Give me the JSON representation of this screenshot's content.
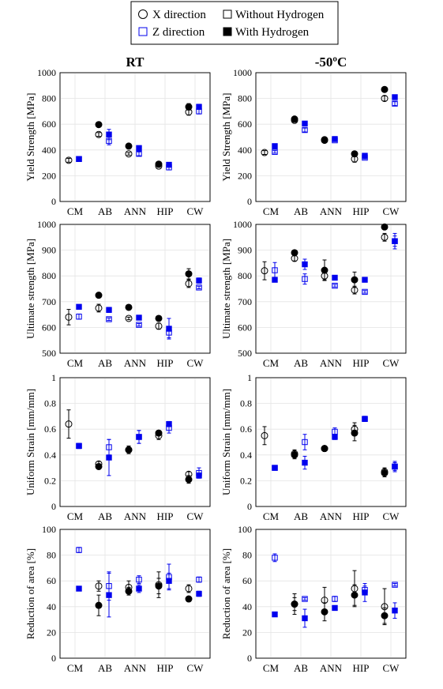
{
  "legend": {
    "x_direction": "X direction",
    "z_direction": "Z direction",
    "without_h": "Without Hydrogen",
    "with_h": "With Hydrogen"
  },
  "colors": {
    "x": "#000000",
    "z": "#0000ee"
  },
  "chart_data": [
    {
      "type": "scatter",
      "title": "RT",
      "ylabel": "Yield Strength [MPa]",
      "ylim": [
        0,
        1000
      ],
      "yticks": [
        "0",
        "200",
        "400",
        "600",
        "800",
        "1000"
      ],
      "categories": [
        "CM",
        "AB",
        "ANN",
        "HIP",
        "CW"
      ],
      "grid": true,
      "series": [
        {
          "dir": "X",
          "h": false,
          "values": [
            320,
            520,
            370,
            275,
            695
          ],
          "err": [
            15,
            15,
            10,
            10,
            25
          ]
        },
        {
          "dir": "X",
          "h": true,
          "values": [
            null,
            597,
            430,
            290,
            735
          ],
          "err": [
            null,
            8,
            8,
            8,
            25
          ]
        },
        {
          "dir": "Z",
          "h": false,
          "values": [
            330,
            470,
            370,
            265,
            700
          ],
          "err": [
            10,
            30,
            15,
            20,
            20
          ]
        },
        {
          "dir": "Z",
          "h": true,
          "values": [
            330,
            520,
            415,
            285,
            735
          ],
          "err": [
            10,
            40,
            8,
            8,
            20
          ]
        }
      ]
    },
    {
      "type": "scatter",
      "title": "-50ºC",
      "ylabel": "Yield Strength [MPa]",
      "ylim": [
        0,
        1000
      ],
      "yticks": [
        "0",
        "200",
        "400",
        "600",
        "800",
        "1000"
      ],
      "categories": [
        "CM",
        "AB",
        "ANN",
        "HIP",
        "CW"
      ],
      "grid": true,
      "series": [
        {
          "dir": "X",
          "h": false,
          "values": [
            380,
            630,
            480,
            330,
            800
          ],
          "err": [
            15,
            15,
            10,
            25,
            20
          ]
        },
        {
          "dir": "X",
          "h": true,
          "values": [
            null,
            640,
            475,
            370,
            870
          ],
          "err": [
            null,
            15,
            10,
            8,
            8
          ]
        },
        {
          "dir": "Z",
          "h": false,
          "values": [
            385,
            555,
            475,
            340,
            760
          ],
          "err": [
            10,
            15,
            10,
            10,
            15
          ]
        },
        {
          "dir": "Z",
          "h": true,
          "values": [
            430,
            605,
            485,
            355,
            810
          ],
          "err": [
            10,
            8,
            8,
            8,
            8
          ]
        }
      ]
    },
    {
      "type": "scatter",
      "ylabel": "Ultimate strength [MPa]",
      "ylim": [
        500,
        1000
      ],
      "yticks": [
        "500",
        "600",
        "700",
        "800",
        "900",
        "1000"
      ],
      "categories": [
        "CM",
        "AB",
        "ANN",
        "HIP",
        "CW"
      ],
      "grid": true,
      "series": [
        {
          "dir": "X",
          "h": false,
          "values": [
            640,
            675,
            635,
            605,
            770
          ],
          "err": [
            30,
            15,
            5,
            12,
            15
          ]
        },
        {
          "dir": "X",
          "h": true,
          "values": [
            null,
            725,
            678,
            635,
            808
          ],
          "err": [
            null,
            5,
            5,
            5,
            20
          ]
        },
        {
          "dir": "Z",
          "h": false,
          "values": [
            642,
            632,
            610,
            580,
            755
          ],
          "err": [
            10,
            5,
            5,
            20,
            5
          ]
        },
        {
          "dir": "Z",
          "h": true,
          "values": [
            680,
            668,
            638,
            595,
            782
          ],
          "err": [
            5,
            10,
            5,
            40,
            10
          ]
        }
      ]
    },
    {
      "type": "scatter",
      "ylabel": "Ultimate strength [MPa]",
      "ylim": [
        500,
        1000
      ],
      "yticks": [
        "500",
        "600",
        "700",
        "800",
        "900",
        "1000"
      ],
      "categories": [
        "CM",
        "AB",
        "ANN",
        "HIP",
        "CW"
      ],
      "grid": true,
      "series": [
        {
          "dir": "X",
          "h": false,
          "values": [
            820,
            868,
            800,
            745,
            950
          ],
          "err": [
            35,
            10,
            15,
            15,
            15
          ]
        },
        {
          "dir": "X",
          "h": true,
          "values": [
            null,
            890,
            822,
            785,
            990
          ],
          "err": [
            null,
            5,
            40,
            30,
            5
          ]
        },
        {
          "dir": "Z",
          "h": false,
          "values": [
            822,
            788,
            762,
            738,
            935
          ],
          "err": [
            30,
            20,
            5,
            5,
            20
          ]
        },
        {
          "dir": "Z",
          "h": true,
          "values": [
            785,
            845,
            793,
            785,
            935
          ],
          "err": [
            5,
            20,
            5,
            5,
            30
          ]
        }
      ]
    },
    {
      "type": "scatter",
      "ylabel": "Uniform Strain [mm/mm]",
      "ylim": [
        0,
        1
      ],
      "yticks": [
        "0",
        "0.2",
        "0.4",
        "0.6",
        "0.8",
        "1"
      ],
      "categories": [
        "CM",
        "AB",
        "ANN",
        "HIP",
        "CW"
      ],
      "grid": true,
      "series": [
        {
          "dir": "X",
          "h": false,
          "values": [
            0.64,
            0.33,
            0.44,
            0.55,
            0.25
          ],
          "err": [
            0.11,
            0.02,
            0.03,
            0.03,
            0.02
          ]
        },
        {
          "dir": "X",
          "h": true,
          "values": [
            null,
            0.31,
            0.44,
            0.57,
            0.21
          ],
          "err": [
            null,
            0.01,
            0.02,
            0.02,
            0.03
          ]
        },
        {
          "dir": "Z",
          "h": false,
          "values": [
            0.47,
            0.46,
            0.54,
            0.61,
            0.26
          ],
          "err": [
            0.02,
            0.06,
            0.05,
            0.04,
            0.04
          ]
        },
        {
          "dir": "Z",
          "h": true,
          "values": [
            0.47,
            0.38,
            0.54,
            0.64,
            0.24
          ],
          "err": [
            0.01,
            0.14,
            0.05,
            0.02,
            0.02
          ]
        }
      ]
    },
    {
      "type": "scatter",
      "ylabel": "Uniform Strain [mm/mm]",
      "ylim": [
        0,
        1
      ],
      "yticks": [
        "0",
        "0.2",
        "0.4",
        "0.6",
        "0.8",
        "1"
      ],
      "categories": [
        "CM",
        "AB",
        "ANN",
        "HIP",
        "CW"
      ],
      "grid": true,
      "series": [
        {
          "dir": "X",
          "h": false,
          "values": [
            0.55,
            0.41,
            0.45,
            0.6,
            0.27
          ],
          "err": [
            0.07,
            0.03,
            0.02,
            0.05,
            0.03
          ]
        },
        {
          "dir": "X",
          "h": true,
          "values": [
            null,
            0.4,
            0.45,
            0.57,
            0.26
          ],
          "err": [
            null,
            0.03,
            0.02,
            0.06,
            0.03
          ]
        },
        {
          "dir": "Z",
          "h": false,
          "values": [
            0.3,
            0.5,
            0.58,
            0.68,
            0.31
          ],
          "err": [
            0.01,
            0.06,
            0.03,
            0.02,
            0.03
          ]
        },
        {
          "dir": "Z",
          "h": true,
          "values": [
            0.3,
            0.34,
            0.54,
            0.68,
            0.31
          ],
          "err": [
            0.01,
            0.05,
            0.02,
            0.02,
            0.04
          ]
        }
      ]
    },
    {
      "type": "scatter",
      "ylabel": "Reduction of area [%]",
      "ylim": [
        0,
        100
      ],
      "yticks": [
        "0",
        "20",
        "40",
        "60",
        "80",
        "100"
      ],
      "categories": [
        "CM",
        "AB",
        "ANN",
        "HIP",
        "CW"
      ],
      "grid": true,
      "series": [
        {
          "dir": "X",
          "h": false,
          "values": [
            null,
            56,
            55,
            57,
            54
          ],
          "err": [
            null,
            4,
            5,
            10,
            3
          ]
        },
        {
          "dir": "X",
          "h": true,
          "values": [
            null,
            41,
            52,
            56,
            46
          ],
          "err": [
            null,
            8,
            3,
            6,
            2
          ]
        },
        {
          "dir": "Z",
          "h": false,
          "values": [
            84,
            56,
            61,
            63,
            61
          ],
          "err": [
            2,
            11,
            3,
            10,
            2
          ]
        },
        {
          "dir": "Z",
          "h": true,
          "values": [
            54,
            49,
            54,
            60,
            50
          ],
          "err": [
            1,
            17,
            3,
            6,
            2
          ]
        }
      ]
    },
    {
      "type": "scatter",
      "ylabel": "Reduction of area [%]",
      "ylim": [
        0,
        100
      ],
      "yticks": [
        "0",
        "20",
        "40",
        "60",
        "80",
        "100"
      ],
      "categories": [
        "CM",
        "AB",
        "ANN",
        "HIP",
        "CW"
      ],
      "grid": true,
      "series": [
        {
          "dir": "X",
          "h": false,
          "values": [
            null,
            42,
            45,
            54,
            40
          ],
          "err": [
            null,
            8,
            10,
            14,
            14
          ]
        },
        {
          "dir": "X",
          "h": true,
          "values": [
            null,
            42,
            36,
            49,
            33
          ],
          "err": [
            null,
            5,
            7,
            8,
            6
          ]
        },
        {
          "dir": "Z",
          "h": false,
          "values": [
            78,
            46,
            46,
            53,
            57
          ],
          "err": [
            3,
            1,
            2,
            3,
            1
          ]
        },
        {
          "dir": "Z",
          "h": true,
          "values": [
            34,
            31,
            39,
            51,
            37
          ],
          "err": [
            1,
            7,
            1,
            7,
            6
          ]
        }
      ]
    }
  ]
}
